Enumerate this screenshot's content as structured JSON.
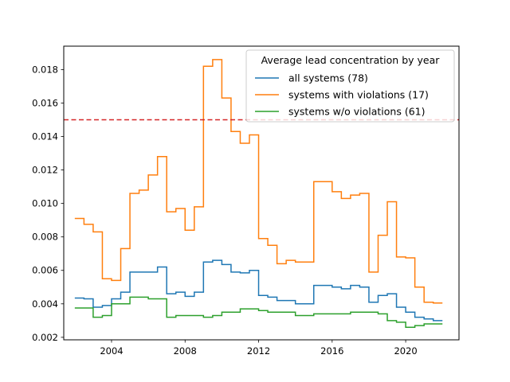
{
  "chart_data": {
    "type": "line",
    "step": "post",
    "xlim": [
      2001.4,
      2022.9
    ],
    "ylim": [
      0.00185,
      0.0194
    ],
    "x_ticks": [
      2004,
      2008,
      2012,
      2016,
      2020
    ],
    "y_ticks": [
      0.002,
      0.004,
      0.006,
      0.008,
      0.01,
      0.012,
      0.014,
      0.016,
      0.018
    ],
    "y_tick_labels": [
      "0.002",
      "0.004",
      "0.006",
      "0.008",
      "0.010",
      "0.012",
      "0.014",
      "0.016",
      "0.018"
    ],
    "x_tick_labels": [
      "2004",
      "2008",
      "2012",
      "2016",
      "2020"
    ],
    "legend": {
      "title": "Average lead concentration by year",
      "placement": "top-right"
    },
    "threshold": {
      "value": 0.015,
      "color": "#d62728",
      "style": "dashed"
    },
    "series": [
      {
        "name": "all systems (78)",
        "color": "#1f77b4",
        "x": [
          2002,
          2002.5,
          2003,
          2003.5,
          2004,
          2004.5,
          2005,
          2005.5,
          2006,
          2006.5,
          2007,
          2007.5,
          2008,
          2008.5,
          2009,
          2009.5,
          2010,
          2010.5,
          2011,
          2011.5,
          2012,
          2012.5,
          2013,
          2013.5,
          2014,
          2014.5,
          2015,
          2015.5,
          2016,
          2016.5,
          2017,
          2017.5,
          2018,
          2018.5,
          2019,
          2019.5,
          2020,
          2020.5,
          2021,
          2021.5,
          2022
        ],
        "y": [
          0.00435,
          0.0043,
          0.0038,
          0.0039,
          0.0043,
          0.0047,
          0.0059,
          0.0059,
          0.0059,
          0.0062,
          0.0046,
          0.0047,
          0.00445,
          0.0047,
          0.0065,
          0.0066,
          0.00635,
          0.0059,
          0.00585,
          0.006,
          0.0045,
          0.0044,
          0.0042,
          0.0042,
          0.004,
          0.004,
          0.0051,
          0.0051,
          0.005,
          0.0049,
          0.0051,
          0.005,
          0.0041,
          0.0045,
          0.0046,
          0.0038,
          0.0035,
          0.0032,
          0.0031,
          0.003,
          0.003
        ]
      },
      {
        "name": "systems with violations (17)",
        "color": "#ff7f0e",
        "x": [
          2002,
          2002.5,
          2003,
          2003.5,
          2004,
          2004.5,
          2005,
          2005.5,
          2006,
          2006.5,
          2007,
          2007.5,
          2008,
          2008.5,
          2009,
          2009.5,
          2010,
          2010.5,
          2011,
          2011.5,
          2012,
          2012.5,
          2013,
          2013.5,
          2014,
          2014.5,
          2015,
          2015.5,
          2016,
          2016.5,
          2017,
          2017.5,
          2018,
          2018.5,
          2019,
          2019.5,
          2020,
          2020.5,
          2021,
          2021.5,
          2022
        ],
        "y": [
          0.0091,
          0.00875,
          0.0083,
          0.0055,
          0.0054,
          0.0073,
          0.0106,
          0.0108,
          0.0117,
          0.0128,
          0.0095,
          0.0097,
          0.0084,
          0.0098,
          0.0182,
          0.0186,
          0.0163,
          0.0143,
          0.0136,
          0.0141,
          0.0079,
          0.0075,
          0.0064,
          0.0066,
          0.0065,
          0.0065,
          0.0113,
          0.0113,
          0.0107,
          0.0103,
          0.0105,
          0.0106,
          0.0059,
          0.0081,
          0.0101,
          0.0068,
          0.00675,
          0.005,
          0.0041,
          0.00405,
          0.00405
        ]
      },
      {
        "name": "systems w/o violations (61)",
        "color": "#2ca02c",
        "x": [
          2002,
          2002.5,
          2003,
          2003.5,
          2004,
          2004.5,
          2005,
          2005.5,
          2006,
          2006.5,
          2007,
          2007.5,
          2008,
          2008.5,
          2009,
          2009.5,
          2010,
          2010.5,
          2011,
          2011.5,
          2012,
          2012.5,
          2013,
          2013.5,
          2014,
          2014.5,
          2015,
          2015.5,
          2016,
          2016.5,
          2017,
          2017.5,
          2018,
          2018.5,
          2019,
          2019.5,
          2020,
          2020.5,
          2021,
          2021.5,
          2022
        ],
        "y": [
          0.00375,
          0.00375,
          0.0032,
          0.0033,
          0.004,
          0.004,
          0.0044,
          0.0044,
          0.0043,
          0.0043,
          0.0032,
          0.0033,
          0.0033,
          0.0033,
          0.0032,
          0.0033,
          0.0035,
          0.0035,
          0.0037,
          0.0037,
          0.0036,
          0.0035,
          0.0035,
          0.0035,
          0.0033,
          0.0033,
          0.0034,
          0.0034,
          0.0034,
          0.0034,
          0.0035,
          0.0035,
          0.0035,
          0.0034,
          0.003,
          0.0029,
          0.0026,
          0.0027,
          0.0028,
          0.0028,
          0.0028
        ]
      }
    ]
  }
}
